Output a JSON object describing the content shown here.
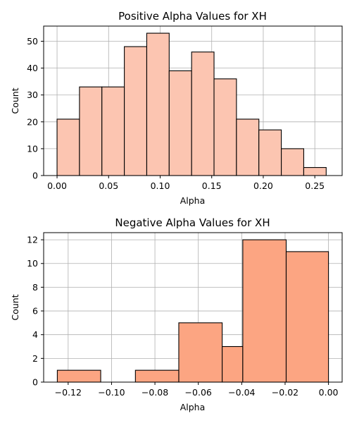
{
  "chart_data": [
    {
      "type": "bar",
      "title": "Positive Alpha Values for XH",
      "xlabel": "Alpha",
      "ylabel": "Count",
      "xlim": [
        -0.013,
        0.2765
      ],
      "ylim": [
        0,
        55.65
      ],
      "xticks": [
        "0.00",
        "0.05",
        "0.10",
        "0.15",
        "0.20",
        "0.25"
      ],
      "xtick_values": [
        0.0,
        0.05,
        0.1,
        0.15,
        0.2,
        0.25
      ],
      "yticks": [
        "0",
        "10",
        "20",
        "30",
        "40",
        "50"
      ],
      "ytick_values": [
        0,
        10,
        20,
        30,
        40,
        50
      ],
      "grid": true,
      "bar_color": "#fcc5b1",
      "bins": [
        {
          "start": 0.0,
          "end": 0.02175,
          "count": 21
        },
        {
          "start": 0.02175,
          "end": 0.0435,
          "count": 33
        },
        {
          "start": 0.0435,
          "end": 0.06525,
          "count": 33
        },
        {
          "start": 0.06525,
          "end": 0.087,
          "count": 48
        },
        {
          "start": 0.087,
          "end": 0.10875,
          "count": 53
        },
        {
          "start": 0.10875,
          "end": 0.1305,
          "count": 39
        },
        {
          "start": 0.1305,
          "end": 0.15225,
          "count": 46
        },
        {
          "start": 0.15225,
          "end": 0.174,
          "count": 36
        },
        {
          "start": 0.174,
          "end": 0.19575,
          "count": 21
        },
        {
          "start": 0.19575,
          "end": 0.2175,
          "count": 17
        },
        {
          "start": 0.2175,
          "end": 0.23925,
          "count": 10
        },
        {
          "start": 0.23925,
          "end": 0.261,
          "count": 3
        }
      ]
    },
    {
      "type": "bar",
      "title": "Negative Alpha Values for XH",
      "xlabel": "Alpha",
      "ylabel": "Count",
      "xlim": [
        -0.1313,
        0.0063
      ],
      "ylim": [
        0,
        12.6
      ],
      "xticks": [
        "−0.12",
        "−0.10",
        "−0.08",
        "−0.06",
        "−0.04",
        "−0.02",
        "0.00"
      ],
      "xtick_values": [
        -0.12,
        -0.1,
        -0.08,
        -0.06,
        -0.04,
        -0.02,
        0.0
      ],
      "yticks": [
        "0",
        "2",
        "4",
        "6",
        "8",
        "10",
        "12"
      ],
      "ytick_values": [
        0,
        2,
        4,
        6,
        8,
        10,
        12
      ],
      "grid": true,
      "bar_color": "#fca582",
      "bins": [
        {
          "start": -0.125,
          "end": -0.105,
          "count": 1
        },
        {
          "start": -0.105,
          "end": -0.089,
          "count": 0
        },
        {
          "start": -0.089,
          "end": -0.069,
          "count": 1
        },
        {
          "start": -0.069,
          "end": -0.049,
          "count": 5
        },
        {
          "start": -0.049,
          "end": -0.0395,
          "count": 3
        },
        {
          "start": -0.0395,
          "end": -0.0195,
          "count": 12
        },
        {
          "start": -0.0195,
          "end": 0.0,
          "count": 11
        }
      ]
    }
  ]
}
